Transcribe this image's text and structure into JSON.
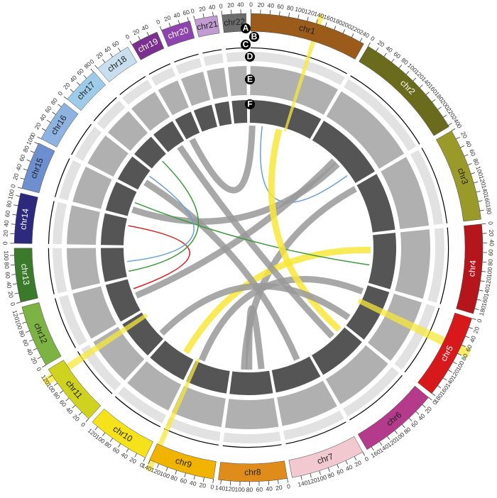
{
  "chart_data": {
    "type": "circos",
    "track_labels": [
      "A",
      "B",
      "C",
      "D",
      "E",
      "F"
    ],
    "chromosomes": [
      {
        "name": "chr1",
        "color": "#9a5b1b",
        "length": 249,
        "ticks": [
          0,
          20,
          40,
          60,
          80,
          100,
          120,
          140,
          160,
          180,
          200,
          220,
          240
        ]
      },
      {
        "name": "chr2",
        "color": "#6b6b1e",
        "length": 243,
        "ticks": [
          0,
          20,
          40,
          60,
          80,
          100,
          120,
          140,
          160,
          180,
          200,
          220,
          240
        ]
      },
      {
        "name": "chr3",
        "color": "#9a9a2a",
        "length": 198,
        "ticks": [
          0,
          20,
          40,
          60,
          80,
          100,
          120,
          140,
          160,
          180
        ]
      },
      {
        "name": "chr4",
        "color": "#b5161c",
        "length": 191,
        "ticks": [
          0,
          20,
          40,
          60,
          80,
          100,
          120,
          140,
          160,
          180
        ]
      },
      {
        "name": "chr5",
        "color": "#d7191c",
        "length": 181,
        "ticks": [
          0,
          20,
          40,
          60,
          80,
          100,
          120,
          140,
          160,
          180
        ]
      },
      {
        "name": "chr6",
        "color": "#b43a8c",
        "length": 171,
        "ticks": [
          0,
          20,
          40,
          60,
          80,
          100,
          120,
          140,
          160
        ]
      },
      {
        "name": "chr7",
        "color": "#f2c9d0",
        "length": 159,
        "ticks": [
          0,
          20,
          40,
          60,
          80,
          100,
          120,
          140
        ]
      },
      {
        "name": "chr8",
        "color": "#e08c1a",
        "length": 146,
        "ticks": [
          0,
          20,
          40,
          60,
          80,
          100,
          120,
          140
        ]
      },
      {
        "name": "chr9",
        "color": "#f0b400",
        "length": 141,
        "ticks": [
          0,
          20,
          40,
          60,
          80,
          100,
          120,
          140
        ]
      },
      {
        "name": "chr10",
        "color": "#f5e21a",
        "length": 135,
        "ticks": [
          0,
          20,
          40,
          60,
          80,
          100,
          120
        ]
      },
      {
        "name": "chr11",
        "color": "#cfd21f",
        "length": 135,
        "ticks": [
          0,
          20,
          40,
          60,
          80,
          100,
          120
        ]
      },
      {
        "name": "chr12",
        "color": "#7cb342",
        "length": 133,
        "ticks": [
          0,
          20,
          40,
          60,
          80,
          100,
          120
        ]
      },
      {
        "name": "chr13",
        "color": "#3b7a2a",
        "length": 115,
        "ticks": [
          0,
          20,
          40,
          60,
          80,
          100
        ]
      },
      {
        "name": "chr14",
        "color": "#2d2a7e",
        "length": 107,
        "ticks": [
          0,
          20,
          40,
          60,
          80,
          100
        ]
      },
      {
        "name": "chr15",
        "color": "#6d8fd0",
        "length": 102,
        "ticks": [
          0,
          20,
          40,
          60,
          80,
          100
        ]
      },
      {
        "name": "chr16",
        "color": "#8fb3e0",
        "length": 90,
        "ticks": [
          0,
          20,
          40,
          60,
          80
        ]
      },
      {
        "name": "chr17",
        "color": "#9ecbe8",
        "length": 81,
        "ticks": [
          0,
          20,
          40,
          60,
          80
        ]
      },
      {
        "name": "chr18",
        "color": "#c9dff0",
        "length": 78,
        "ticks": [
          0,
          20,
          40,
          60
        ]
      },
      {
        "name": "chr19",
        "color": "#7b2f8f",
        "length": 59,
        "ticks": [
          0,
          20,
          40
        ]
      },
      {
        "name": "chr20",
        "color": "#8e44ad",
        "length": 63,
        "ticks": [
          0,
          20,
          40,
          60
        ]
      },
      {
        "name": "chr21",
        "color": "#c39bd3",
        "length": 48,
        "ticks": [
          0,
          20,
          40
        ]
      },
      {
        "name": "chr22",
        "color": "#6d6d6d",
        "length": 51,
        "ticks": [
          0,
          20,
          40
        ]
      }
    ],
    "highlight_color": "#f7e83a",
    "highlights": [
      {
        "chr": "chr1",
        "start": 140,
        "end": 150
      },
      {
        "chr": "chr5",
        "start": 60,
        "end": 80
      },
      {
        "chr": "chr9",
        "start": 128,
        "end": 140
      },
      {
        "chr": "chr11",
        "start": 108,
        "end": 124
      }
    ],
    "links": [
      {
        "source": [
          "chr1",
          10
        ],
        "target": [
          "chr19",
          20
        ],
        "color": "#999999",
        "style": "ribbon"
      },
      {
        "source": [
          "chr1",
          50
        ],
        "target": [
          "chr2",
          200
        ],
        "color": "#6a9fd6",
        "style": "line"
      },
      {
        "source": [
          "chr2",
          140
        ],
        "target": [
          "chr15",
          30
        ],
        "color": "#999999",
        "style": "ribbon"
      },
      {
        "source": [
          "chr3",
          10
        ],
        "target": [
          "chr8",
          100
        ],
        "color": "#999999",
        "style": "ribbon"
      },
      {
        "source": [
          "chr2",
          120
        ],
        "target": [
          "chr12",
          60
        ],
        "color": "#999999",
        "style": "ribbon"
      },
      {
        "source": [
          "chr4",
          60
        ],
        "target": [
          "chr10",
          40
        ],
        "color": "#f7e83a",
        "style": "ribbon"
      },
      {
        "source": [
          "chr5",
          30
        ],
        "target": [
          "chr9",
          120
        ],
        "color": "#999999",
        "style": "ribbon"
      },
      {
        "source": [
          "chr6",
          60
        ],
        "target": [
          "chr18",
          50
        ],
        "color": "#999999",
        "style": "ribbon"
      },
      {
        "source": [
          "chr7",
          50
        ],
        "target": [
          "chr16",
          40
        ],
        "color": "#999999",
        "style": "ribbon"
      },
      {
        "source": [
          "chr8",
          30
        ],
        "target": [
          "chr8",
          80
        ],
        "color": "#999999",
        "style": "ribbon"
      },
      {
        "source": [
          "chr12",
          90
        ],
        "target": [
          "chr14",
          80
        ],
        "color": "#d7191c",
        "style": "line"
      },
      {
        "source": [
          "chr15",
          60
        ],
        "target": [
          "chr4",
          120
        ],
        "color": "#3c9a3c",
        "style": "line"
      },
      {
        "source": [
          "chr17",
          50
        ],
        "target": [
          "chr13",
          20
        ],
        "color": "#3c9a3c",
        "style": "line"
      },
      {
        "source": [
          "chr16",
          70
        ],
        "target": [
          "chr13",
          60
        ],
        "color": "#6a9fd6",
        "style": "line"
      },
      {
        "source": [
          "chr6",
          20
        ],
        "target": [
          "chr1",
          120
        ],
        "color": "#f7e83a",
        "style": "ribbon"
      },
      {
        "source": [
          "chr5",
          150
        ],
        "target": [
          "chr11",
          20
        ],
        "color": "#999999",
        "style": "ribbon"
      }
    ]
  }
}
